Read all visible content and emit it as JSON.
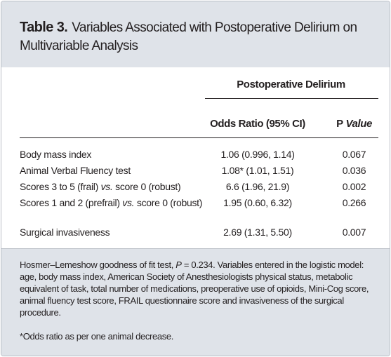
{
  "header": {
    "label": "Table 3.",
    "title": "Variables Associated with Postoperative Delirium on Multivariable Analysis"
  },
  "table": {
    "group_header": "Postoperative Delirium",
    "columns": [
      [
        "Odds Ratio (95% CI)"
      ],
      [
        "P",
        " Value"
      ]
    ],
    "rows": [
      [
        [
          "Body mass index"
        ],
        "1.06 (0.996, 1.14)",
        "0.067"
      ],
      [
        [
          "Animal Verbal Fluency test"
        ],
        "1.08* (1.01, 1.51)",
        "0.036"
      ],
      [
        [
          "Scores 3 to 5 (frail) ",
          "vs.",
          " score 0 (robust)"
        ],
        "6.6 (1.96, 21.9)",
        "0.002"
      ],
      [
        [
          "Scores 1 and 2 (prefrail) ",
          "vs.",
          " score 0 (robust)"
        ],
        "1.95 (0.60, 6.32)",
        "0.266"
      ],
      [
        [
          "Surgical invasiveness"
        ],
        "2.69 (1.31, 5.50)",
        "0.007"
      ]
    ]
  },
  "footnotes": [
    [
      "Hosmer–Lemeshow goodness of fit test, ",
      "P",
      " = 0.234. Variables entered in the logistic model: age, body mass index, American Society of Anesthesiologists physical status, metabolic equivalent of task, total number of medications, preoperative use of opioids, Mini-Cog score, animal fluency test score, FRAIL questionnaire score and invasiveness of the surgical procedure."
    ],
    [
      "*Odds ratio as per one animal decrease."
    ]
  ]
}
